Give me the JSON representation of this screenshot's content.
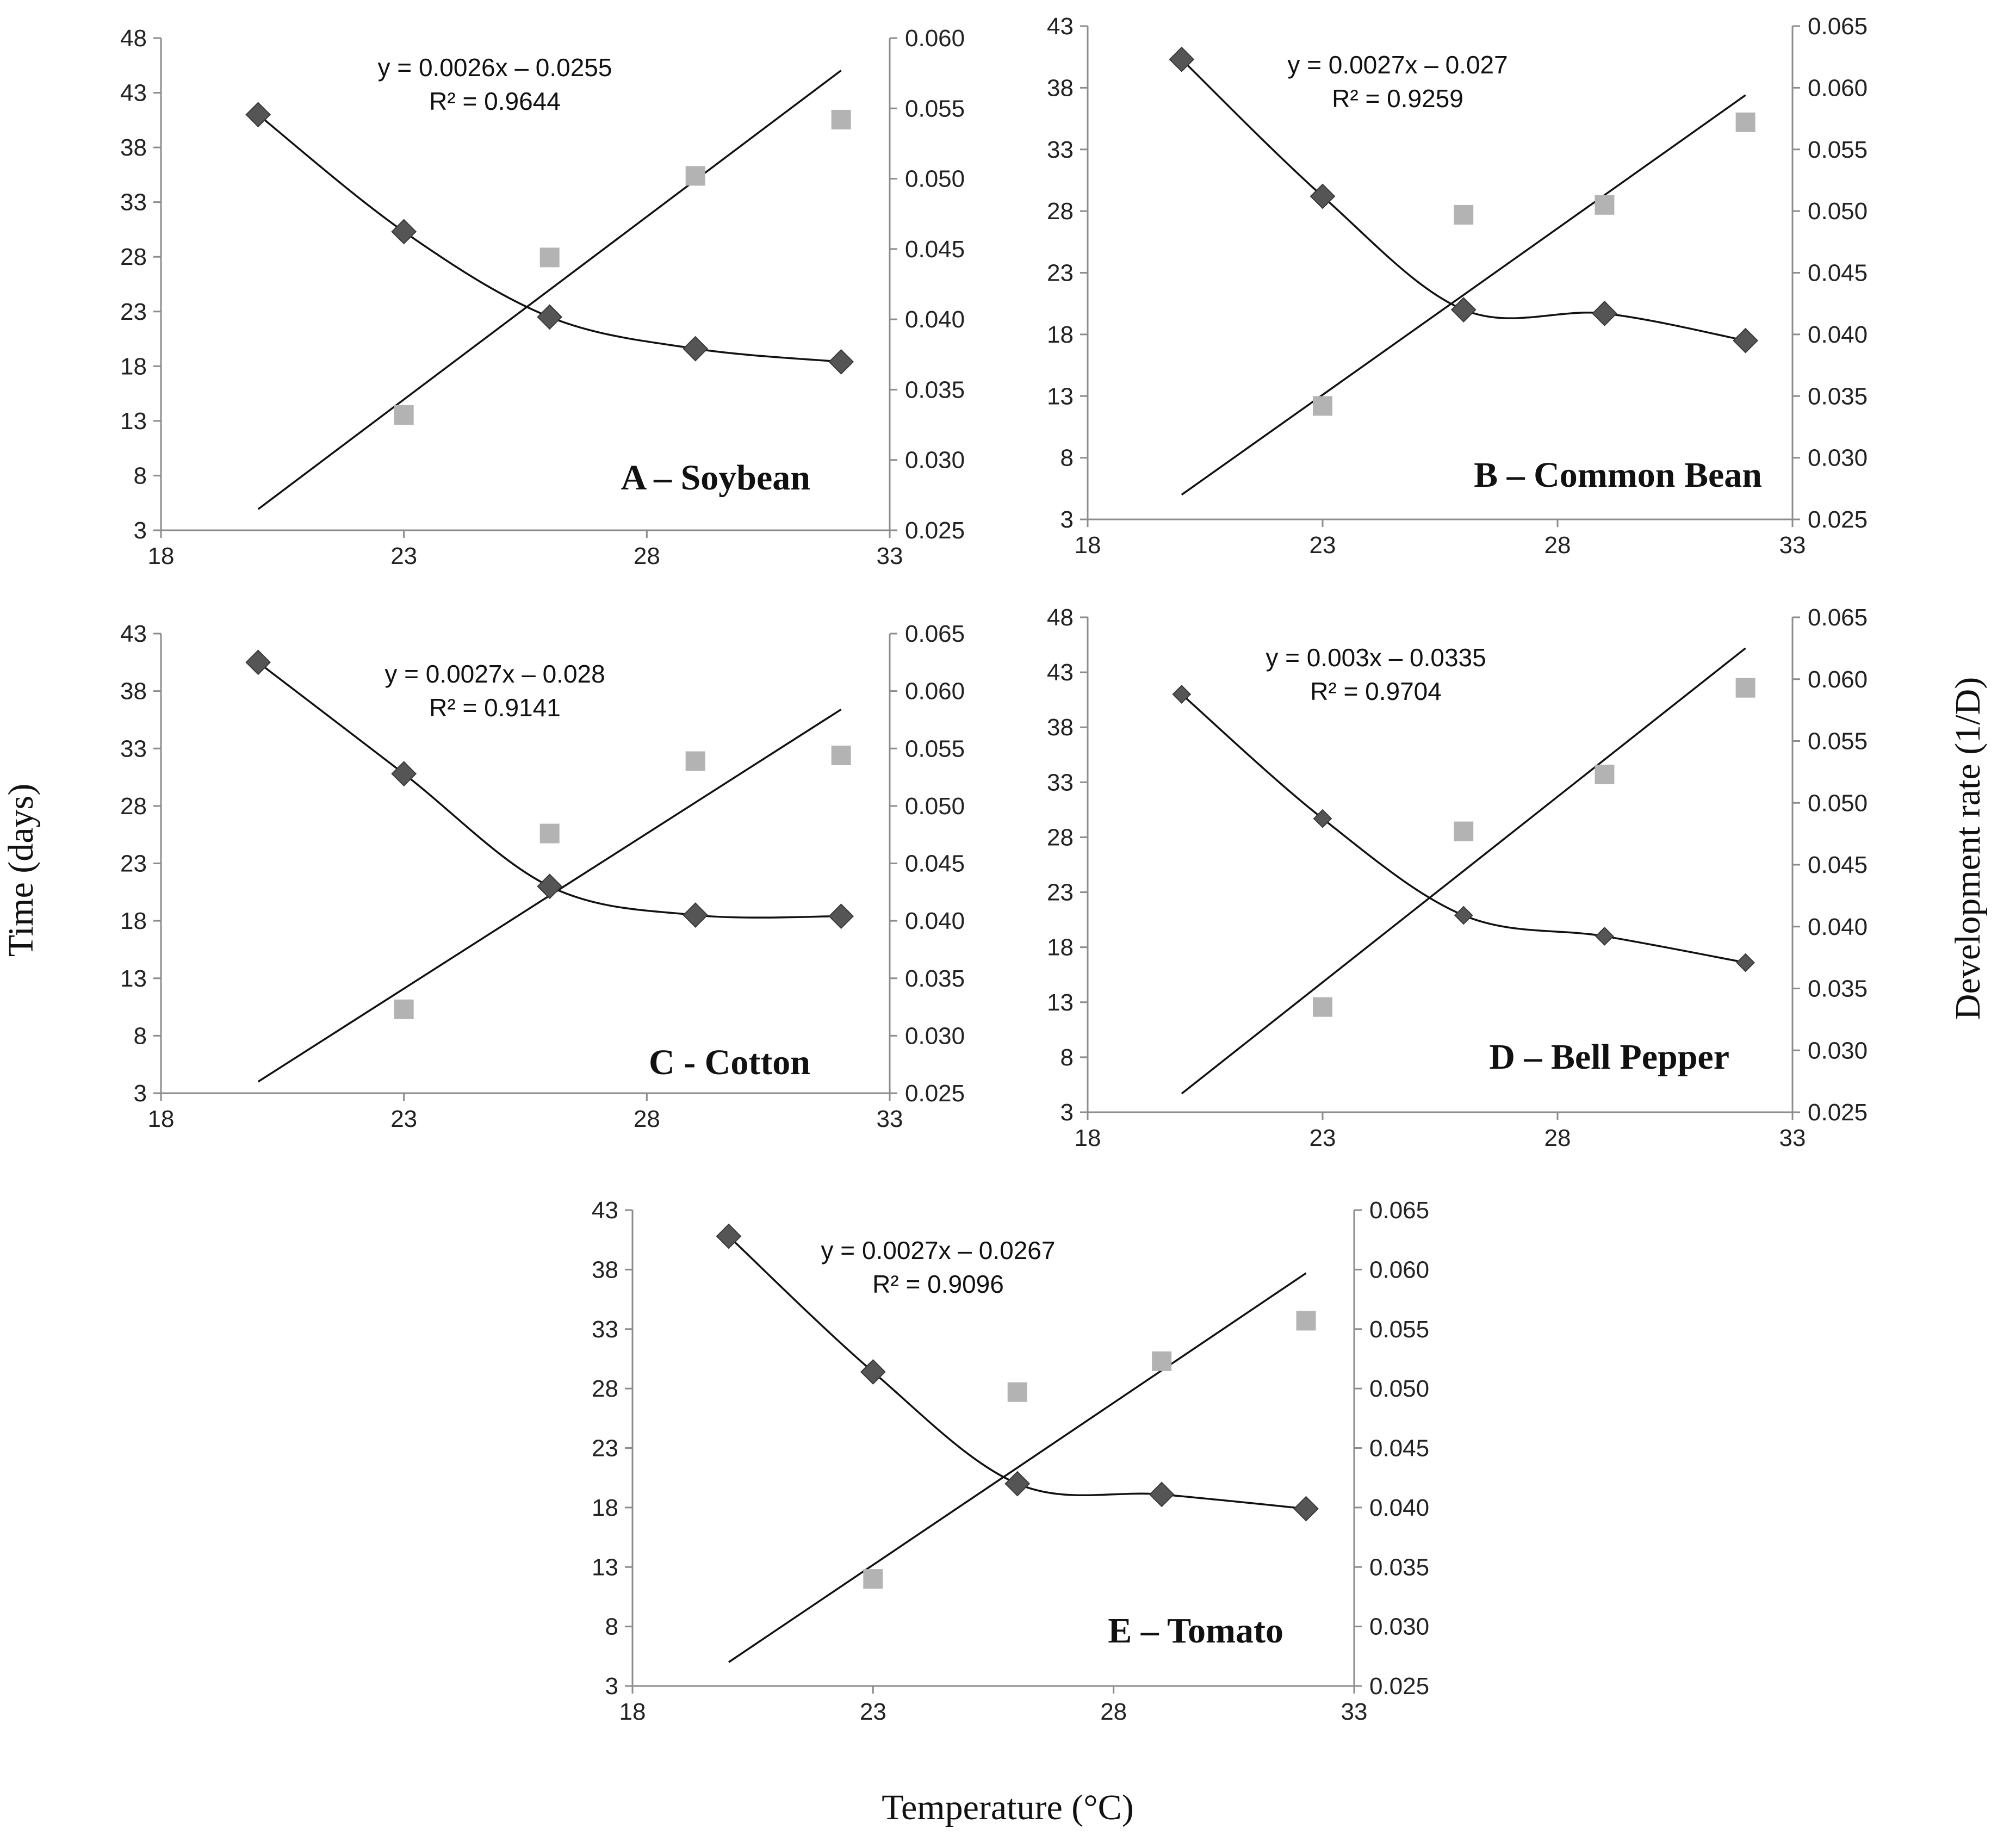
{
  "figure": {
    "ylabel_left": "Time (days)",
    "ylabel_right": "Development rate (1/D)",
    "xlabel": "Temperature (°C)"
  },
  "colors": {
    "time_marker": "#555555",
    "rate_marker": "#b3b3b3",
    "line": "#111111",
    "axis": "#8c8c8c"
  },
  "chart_data": [
    {
      "type": "scatter",
      "panel": "A – Soybean",
      "equation": "y = 0.0026x – 0.0255",
      "r2": "R² = 0.9644",
      "x_ticks": [
        "18",
        "23",
        "28",
        "33"
      ],
      "y_left_ticks": [
        "3",
        "8",
        "13",
        "18",
        "23",
        "28",
        "33",
        "38",
        "43",
        "48"
      ],
      "y_right_ticks": [
        "0.025",
        "0.030",
        "0.035",
        "0.040",
        "0.045",
        "0.050",
        "0.055",
        "0.060"
      ],
      "xlim": [
        18,
        33
      ],
      "ylim_left": [
        3,
        48
      ],
      "ylim_right": [
        0.025,
        0.06
      ],
      "series": [
        {
          "name": "Time (days)",
          "axis": "left",
          "marker": "diamond",
          "x": [
            20,
            23,
            26,
            29,
            32
          ],
          "values": [
            41,
            30.3,
            22.5,
            19.6,
            18.4
          ],
          "fit": "polynomial"
        },
        {
          "name": "Development rate (1/D)",
          "axis": "right",
          "marker": "square",
          "x": [
            23,
            26,
            29,
            32
          ],
          "values": [
            0.0332,
            0.0444,
            0.0502,
            0.0542
          ],
          "fit": "linear",
          "fit_x": [
            20,
            32
          ],
          "fit_y": [
            0.0265,
            0.0577
          ]
        }
      ]
    },
    {
      "type": "scatter",
      "panel": "B – Common Bean",
      "equation": "y = 0.0027x – 0.027",
      "r2": "R² = 0.9259",
      "x_ticks": [
        "18",
        "23",
        "28",
        "33"
      ],
      "y_left_ticks": [
        "3",
        "8",
        "13",
        "18",
        "23",
        "28",
        "33",
        "38",
        "43"
      ],
      "y_right_ticks": [
        "0.025",
        "0.030",
        "0.035",
        "0.040",
        "0.045",
        "0.050",
        "0.055",
        "0.060",
        "0.065"
      ],
      "xlim": [
        18,
        33
      ],
      "ylim_left": [
        3,
        43
      ],
      "ylim_right": [
        0.025,
        0.065
      ],
      "series": [
        {
          "name": "Time (days)",
          "axis": "left",
          "marker": "diamond",
          "x": [
            20,
            23,
            26,
            29,
            32
          ],
          "values": [
            40.3,
            29.2,
            20.0,
            19.7,
            17.5
          ],
          "fit": "polynomial"
        },
        {
          "name": "Development rate (1/D)",
          "axis": "right",
          "marker": "square",
          "x": [
            23,
            26,
            29,
            32
          ],
          "values": [
            0.0342,
            0.0497,
            0.0505,
            0.0572
          ],
          "fit": "linear",
          "fit_x": [
            20,
            32
          ],
          "fit_y": [
            0.027,
            0.0594
          ]
        }
      ]
    },
    {
      "type": "scatter",
      "panel": "C - Cotton",
      "equation": "y = 0.0027x – 0.028",
      "r2": "R² = 0.9141",
      "x_ticks": [
        "18",
        "23",
        "28",
        "33"
      ],
      "y_left_ticks": [
        "3",
        "8",
        "13",
        "18",
        "23",
        "28",
        "33",
        "38",
        "43"
      ],
      "y_right_ticks": [
        "0.025",
        "0.030",
        "0.035",
        "0.040",
        "0.045",
        "0.050",
        "0.055",
        "0.060",
        "0.065"
      ],
      "xlim": [
        18,
        33
      ],
      "ylim_left": [
        3,
        43
      ],
      "ylim_right": [
        0.025,
        0.065
      ],
      "series": [
        {
          "name": "Time (days)",
          "axis": "left",
          "marker": "diamond",
          "x": [
            20,
            23,
            26,
            29,
            32
          ],
          "values": [
            40.5,
            30.8,
            21.0,
            18.5,
            18.4
          ],
          "fit": "polynomial"
        },
        {
          "name": "Development rate (1/D)",
          "axis": "right",
          "marker": "square",
          "x": [
            23,
            26,
            29,
            32
          ],
          "values": [
            0.0323,
            0.0476,
            0.0539,
            0.0544
          ],
          "fit": "linear",
          "fit_x": [
            20,
            32
          ],
          "fit_y": [
            0.026,
            0.0584
          ]
        }
      ]
    },
    {
      "type": "scatter",
      "panel": "D – Bell Pepper",
      "equation": "y = 0.003x – 0.0335",
      "r2": "R² = 0.9704",
      "x_ticks": [
        "18",
        "23",
        "28",
        "33"
      ],
      "y_left_ticks": [
        "3",
        "8",
        "13",
        "18",
        "23",
        "28",
        "33",
        "38",
        "43",
        "48"
      ],
      "y_right_ticks": [
        "0.025",
        "0.030",
        "0.035",
        "0.040",
        "0.045",
        "0.050",
        "0.055",
        "0.060",
        "0.065"
      ],
      "xlim": [
        18,
        33
      ],
      "ylim_left": [
        3,
        48
      ],
      "ylim_right": [
        0.025,
        0.065
      ],
      "series": [
        {
          "name": "Time (days)",
          "axis": "left",
          "marker": "diamond",
          "x": [
            20,
            23,
            26,
            29,
            32
          ],
          "values": [
            41,
            29.7,
            20.9,
            19.0,
            16.6
          ],
          "fit": "polynomial"
        },
        {
          "name": "Development rate (1/D)",
          "axis": "right",
          "marker": "square",
          "x": [
            23,
            26,
            29,
            32
          ],
          "values": [
            0.0335,
            0.0477,
            0.0523,
            0.0593
          ],
          "fit": "linear",
          "fit_x": [
            20,
            32
          ],
          "fit_y": [
            0.0265,
            0.0625
          ]
        }
      ]
    },
    {
      "type": "scatter",
      "panel": "E – Tomato",
      "equation": "y = 0.0027x – 0.0267",
      "r2": "R² = 0.9096",
      "x_ticks": [
        "18",
        "23",
        "28",
        "33"
      ],
      "y_left_ticks": [
        "3",
        "8",
        "13",
        "18",
        "23",
        "28",
        "33",
        "38",
        "43"
      ],
      "y_right_ticks": [
        "0.025",
        "0.030",
        "0.035",
        "0.040",
        "0.045",
        "0.050",
        "0.055",
        "0.060",
        "0.065"
      ],
      "xlim": [
        18,
        33
      ],
      "ylim_left": [
        3,
        43
      ],
      "ylim_right": [
        0.025,
        0.065
      ],
      "series": [
        {
          "name": "Time (days)",
          "axis": "left",
          "marker": "diamond",
          "x": [
            20,
            23,
            26,
            29,
            32
          ],
          "values": [
            40.8,
            29.4,
            20.0,
            19.1,
            17.9
          ],
          "fit": "polynomial"
        },
        {
          "name": "Development rate (1/D)",
          "axis": "right",
          "marker": "square",
          "x": [
            23,
            26,
            29,
            32
          ],
          "values": [
            0.034,
            0.0497,
            0.0523,
            0.0557
          ],
          "fit": "linear",
          "fit_x": [
            20,
            32
          ],
          "fit_y": [
            0.027,
            0.0597
          ]
        }
      ]
    }
  ]
}
